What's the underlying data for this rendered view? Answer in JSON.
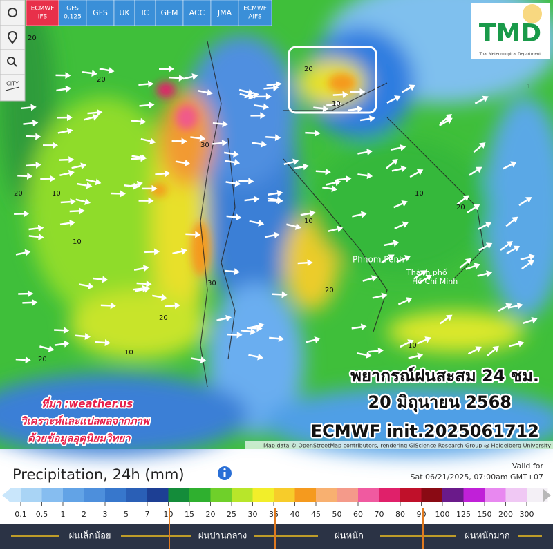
{
  "toolbar": {
    "models": [
      [
        "ECMWF",
        "IFS"
      ],
      [
        "GFS",
        "0.125"
      ],
      [
        "GFS"
      ],
      [
        "UK"
      ],
      [
        "IC"
      ],
      [
        "GEM"
      ],
      [
        "ACC"
      ],
      [
        "JMA"
      ],
      [
        "ECMWF",
        "AIFS"
      ]
    ],
    "city_button": "CITY"
  },
  "logo": {
    "title": "TMD",
    "subtitle": "Thai Meteorological Department"
  },
  "map": {
    "places": [
      "Phnom Penh",
      "Thành phố",
      "Hồ Chí Minh"
    ],
    "contour_labels": [
      "20",
      "10",
      "20",
      "30",
      "20",
      "10",
      "20",
      "10",
      "20",
      "10",
      "20",
      "10",
      "20",
      "30",
      "10",
      "1",
      "20",
      "10"
    ],
    "attribution": "Map data © OpenStreetMap contributors, rendering GIScience Research Group @ Heidelberg University"
  },
  "overlay": {
    "forecast_lines": [
      "พยากรณ์ฝนสะสม 24 ชม.",
      "20 มิถุนายน 2568",
      "ECMWF init.2025061712"
    ],
    "source_lines": [
      "ที่มา :weather.us",
      "วิเคราะห์และแปลผลจากภาพ",
      "ด้วยข้อมูลอุตุนิยมวิทยา"
    ]
  },
  "legend": {
    "title": "Precipitation, 24h (mm)",
    "valid_label": "Valid for",
    "valid_time": "Sat 06/21/2025, 07:00am GMT+07",
    "ticks": [
      0.1,
      0.5,
      1,
      2,
      3,
      5,
      7,
      10,
      15,
      20,
      25,
      30,
      35,
      40,
      45,
      50,
      60,
      70,
      80,
      90,
      100,
      125,
      150,
      200,
      300
    ],
    "colors": [
      "#c9e6fb",
      "#a9d4f5",
      "#86bdf0",
      "#62a3e6",
      "#4d8fdc",
      "#3777cc",
      "#2a5fb6",
      "#1d3f94",
      "#148c3a",
      "#2fb02f",
      "#6fd02a",
      "#b8e62a",
      "#f2ee2a",
      "#f7cc2a",
      "#f59a1e",
      "#f8b070",
      "#f49a8a",
      "#f05aa0",
      "#e0206a",
      "#c0102a",
      "#8a0a14",
      "#6a1a8a",
      "#c020d8",
      "#e888f0",
      "#f0c8f4",
      "#f4f0f6",
      "#b8b8b8"
    ],
    "categories": [
      "ฝนเล็กน้อย",
      "ฝนปานกลาง",
      "ฝนหนัก",
      "ฝนหนักมาก"
    ]
  }
}
